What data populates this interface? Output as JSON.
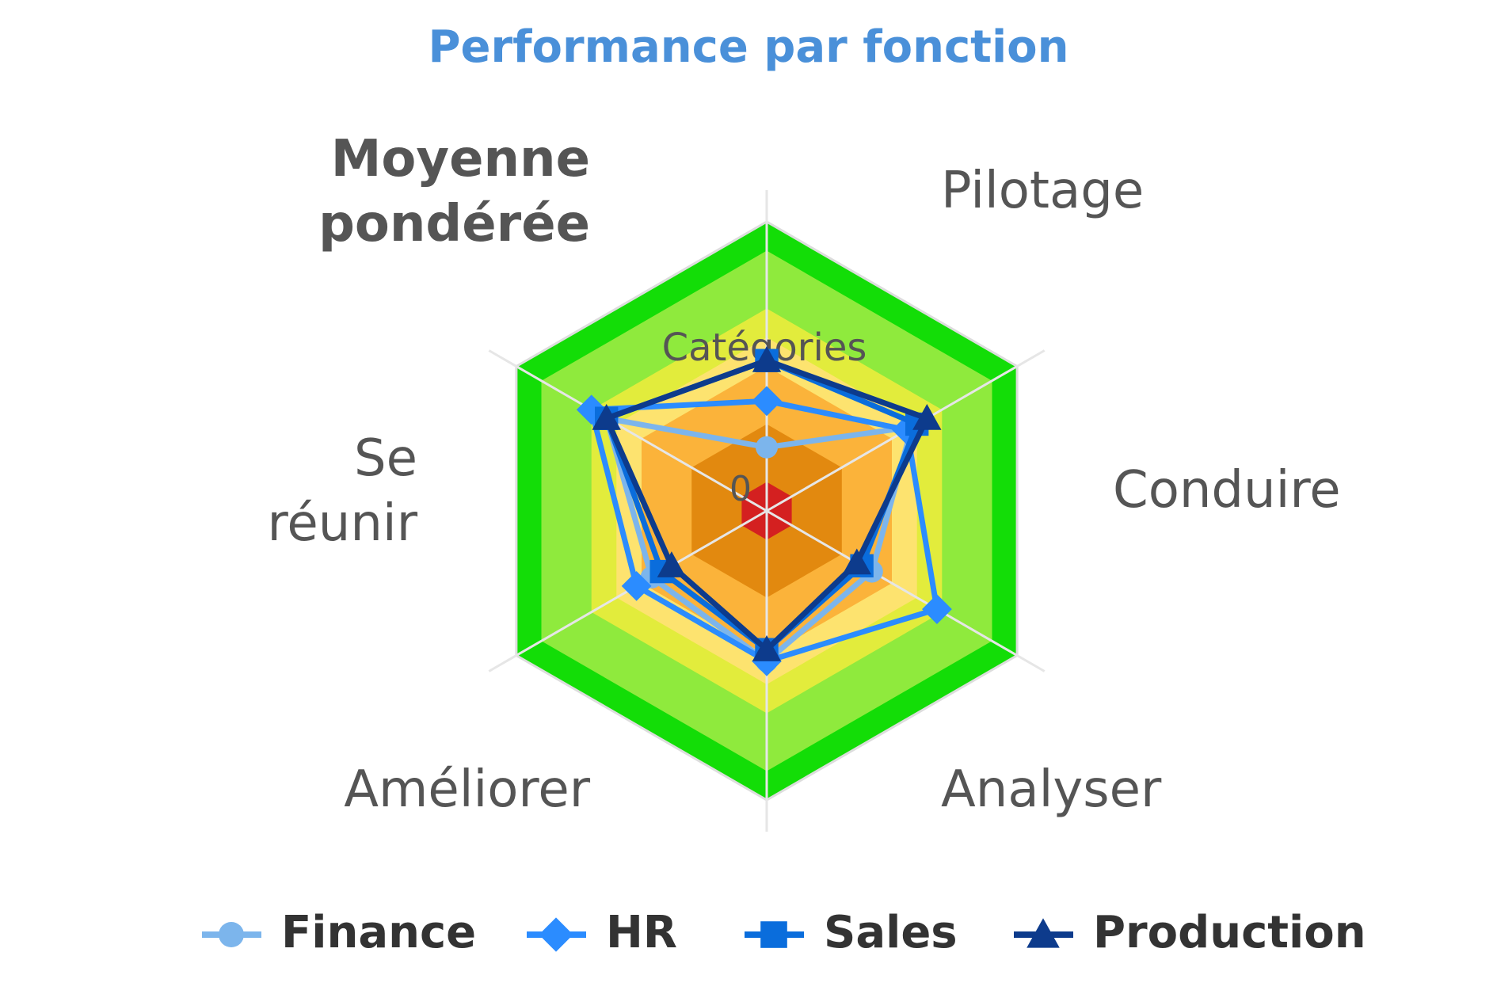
{
  "chart_data": {
    "type": "radar",
    "title": "Performance par fonction",
    "center_label": "Catégories",
    "zero_label": "0",
    "categories": [
      "Moyenne pondérée",
      "Pilotage",
      "Conduire",
      "Analyser",
      "Améliorer",
      "Se réunir"
    ],
    "axis_labels": [
      {
        "lines": [
          "Moyenne",
          "pondérée"
        ],
        "bold": true
      },
      {
        "lines": [
          "Pilotage"
        ],
        "bold": false
      },
      {
        "lines": [
          "Conduire"
        ],
        "bold": false
      },
      {
        "lines": [
          "Analyser"
        ],
        "bold": false
      },
      {
        "lines": [
          "Améliorer"
        ],
        "bold": false
      },
      {
        "lines": [
          "Se",
          "réunir"
        ],
        "bold": false
      }
    ],
    "radial_range": [
      0,
      5
    ],
    "bands": [
      {
        "to": 0.5,
        "color": "#d42020"
      },
      {
        "to": 1.5,
        "color": "#e2890f"
      },
      {
        "to": 2.5,
        "color": "#fbb33a"
      },
      {
        "to": 3.0,
        "color": "#fde36f"
      },
      {
        "to": 3.5,
        "color": "#e2ec3c"
      },
      {
        "to": 4.5,
        "color": "#8fea3d"
      },
      {
        "to": 5.0,
        "color": "#13dd07"
      }
    ],
    "series": [
      {
        "name": "Finance",
        "color": "#7cb5ec",
        "marker": "circle",
        "values": [
          3.2,
          1.1,
          2.9,
          2.1,
          2.6,
          2.3
        ]
      },
      {
        "name": "HR",
        "color": "#2b8cff",
        "marker": "diamond",
        "values": [
          3.5,
          1.9,
          2.8,
          3.4,
          2.6,
          2.6
        ]
      },
      {
        "name": "Sales",
        "color": "#0a6ddc",
        "marker": "square",
        "values": [
          3.2,
          2.6,
          3.0,
          1.9,
          2.4,
          2.1
        ]
      },
      {
        "name": "Production",
        "color": "#0d3b8c",
        "marker": "triangle",
        "values": [
          3.2,
          2.6,
          3.2,
          1.8,
          2.4,
          1.9
        ]
      }
    ]
  }
}
